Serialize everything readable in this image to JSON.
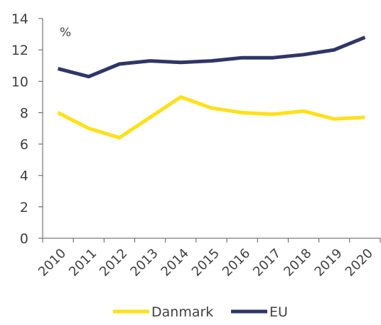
{
  "chart_data": {
    "type": "line",
    "unit_label": "%",
    "categories": [
      "2010",
      "2011",
      "2012",
      "2013",
      "2014",
      "2015",
      "2016",
      "2017",
      "2018",
      "2019",
      "2020"
    ],
    "yticks": [
      "0",
      "2",
      "4",
      "6",
      "8",
      "10",
      "12",
      "14"
    ],
    "ylim": [
      0,
      14
    ],
    "grid": false,
    "legend_position": "bottom",
    "series": [
      {
        "name": "Danmark",
        "color": "#FFE017",
        "values": [
          8.0,
          7.0,
          6.4,
          7.7,
          9.0,
          8.3,
          8.0,
          7.9,
          8.1,
          7.6,
          7.7
        ]
      },
      {
        "name": "EU",
        "color": "#2E3668",
        "values": [
          10.8,
          10.3,
          11.1,
          11.3,
          11.2,
          11.3,
          11.5,
          11.5,
          11.7,
          12.0,
          12.8
        ]
      }
    ]
  }
}
